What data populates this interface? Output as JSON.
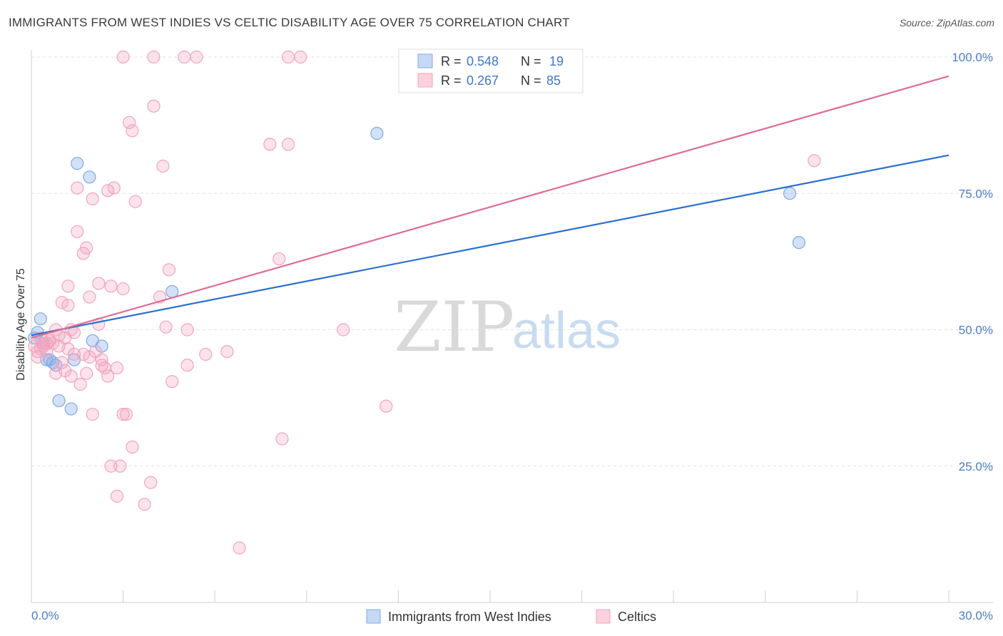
{
  "header": {
    "title": "IMMIGRANTS FROM WEST INDIES VS CELTIC DISABILITY AGE OVER 75 CORRELATION CHART",
    "source": "Source: ZipAtlas.com"
  },
  "watermark": {
    "zip": "ZIP",
    "atlas": "atlas"
  },
  "chart_data": {
    "type": "scatter",
    "title": "IMMIGRANTS FROM WEST INDIES VS CELTIC DISABILITY AGE OVER 75 CORRELATION CHART",
    "xlabel": "",
    "ylabel": "Disability Age Over 75",
    "xlim": [
      0,
      30
    ],
    "ylim": [
      0,
      102
    ],
    "x_tick_labels": {
      "left": "0.0%",
      "right": "30.0%"
    },
    "y_ticks": [
      {
        "value": 25,
        "label": "25.0%"
      },
      {
        "value": 50,
        "label": "50.0%"
      },
      {
        "value": 75,
        "label": "75.0%"
      },
      {
        "value": 100,
        "label": "100.0%"
      }
    ],
    "legend": {
      "entries": [
        {
          "r_label": "R = ",
          "r_value": "0.548",
          "n_label": "N = ",
          "n_value": "19"
        },
        {
          "r_label": "R = ",
          "r_value": "0.267",
          "n_label": "N = ",
          "n_value": "85"
        }
      ]
    },
    "series": [
      {
        "name": "Immigrants from West Indies",
        "color": "#7fa9e6",
        "line_color": "#2b6fd0",
        "trend": {
          "x0": 0,
          "y0": 49.0,
          "x1": 30,
          "y1": 82.0
        },
        "points": [
          [
            0.2,
            49.5
          ],
          [
            0.3,
            52.0
          ],
          [
            0.4,
            47.5
          ],
          [
            0.5,
            44.5
          ],
          [
            0.6,
            44.5
          ],
          [
            0.8,
            43.5
          ],
          [
            0.9,
            37.0
          ],
          [
            1.3,
            35.5
          ],
          [
            1.4,
            44.5
          ],
          [
            1.5,
            80.5
          ],
          [
            1.9,
            78.0
          ],
          [
            2.0,
            48.0
          ],
          [
            2.3,
            47.0
          ],
          [
            4.6,
            57.0
          ],
          [
            11.3,
            86.0
          ],
          [
            24.8,
            75.0
          ],
          [
            25.1,
            66.0
          ],
          [
            0.1,
            48.5
          ],
          [
            0.7,
            44.0
          ]
        ]
      },
      {
        "name": "Celtics",
        "color": "#f3a3bd",
        "line_color": "#e06b93",
        "trend": {
          "x0": 0,
          "y0": 48.5,
          "x1": 30,
          "y1": 96.5
        },
        "points": [
          [
            0.1,
            47.0
          ],
          [
            0.2,
            45.0
          ],
          [
            0.3,
            48.5
          ],
          [
            0.3,
            46.5
          ],
          [
            0.4,
            47.0
          ],
          [
            0.5,
            46.0
          ],
          [
            0.5,
            47.5
          ],
          [
            0.6,
            48.0
          ],
          [
            0.7,
            47.5
          ],
          [
            0.8,
            50.0
          ],
          [
            0.9,
            49.0
          ],
          [
            1.0,
            55.0
          ],
          [
            1.1,
            48.5
          ],
          [
            1.2,
            54.5
          ],
          [
            1.2,
            58.0
          ],
          [
            1.3,
            50.0
          ],
          [
            1.4,
            45.5
          ],
          [
            1.5,
            68.0
          ],
          [
            1.5,
            76.0
          ],
          [
            1.6,
            40.0
          ],
          [
            1.7,
            64.0
          ],
          [
            1.8,
            42.0
          ],
          [
            1.8,
            65.0
          ],
          [
            1.9,
            45.0
          ],
          [
            1.9,
            56.0
          ],
          [
            2.0,
            74.0
          ],
          [
            2.0,
            34.5
          ],
          [
            2.2,
            58.5
          ],
          [
            2.2,
            51.0
          ],
          [
            2.3,
            44.5
          ],
          [
            2.4,
            43.0
          ],
          [
            2.5,
            41.5
          ],
          [
            2.5,
            75.5
          ],
          [
            2.6,
            25.0
          ],
          [
            2.6,
            58.0
          ],
          [
            2.7,
            76.0
          ],
          [
            2.8,
            43.0
          ],
          [
            2.8,
            19.5
          ],
          [
            2.9,
            25.0
          ],
          [
            3.0,
            57.5
          ],
          [
            3.0,
            34.5
          ],
          [
            3.1,
            34.5
          ],
          [
            3.2,
            88.0
          ],
          [
            3.3,
            86.5
          ],
          [
            3.3,
            28.5
          ],
          [
            3.4,
            73.5
          ],
          [
            3.0,
            100.0
          ],
          [
            3.7,
            18.0
          ],
          [
            3.9,
            22.0
          ],
          [
            4.0,
            100.0
          ],
          [
            4.0,
            91.0
          ],
          [
            4.2,
            56.0
          ],
          [
            4.3,
            80.0
          ],
          [
            4.4,
            50.5
          ],
          [
            4.5,
            61.0
          ],
          [
            4.6,
            40.5
          ],
          [
            5.0,
            100.0
          ],
          [
            5.1,
            50.0
          ],
          [
            5.1,
            43.5
          ],
          [
            5.4,
            100.0
          ],
          [
            5.7,
            45.5
          ],
          [
            6.4,
            46.0
          ],
          [
            6.8,
            10.0
          ],
          [
            7.8,
            84.0
          ],
          [
            8.1,
            63.0
          ],
          [
            8.2,
            30.0
          ],
          [
            8.4,
            84.0
          ],
          [
            8.4,
            100.0
          ],
          [
            8.8,
            100.0
          ],
          [
            10.2,
            50.0
          ],
          [
            11.6,
            36.0
          ],
          [
            25.6,
            81.0
          ],
          [
            0.2,
            46.0
          ],
          [
            0.4,
            47.5
          ],
          [
            0.6,
            48.0
          ],
          [
            0.9,
            47.0
          ],
          [
            1.0,
            44.0
          ],
          [
            1.1,
            42.5
          ],
          [
            1.3,
            41.5
          ],
          [
            1.7,
            45.5
          ],
          [
            2.1,
            46.0
          ],
          [
            2.3,
            43.5
          ],
          [
            1.4,
            49.5
          ],
          [
            0.8,
            42.0
          ],
          [
            1.2,
            46.5
          ]
        ]
      }
    ]
  },
  "bottom_legend": {
    "items": [
      {
        "label": "Immigrants from West Indies",
        "color": "#7fa9e6"
      },
      {
        "label": "Celtics",
        "color": "#f3a3bd"
      }
    ]
  }
}
